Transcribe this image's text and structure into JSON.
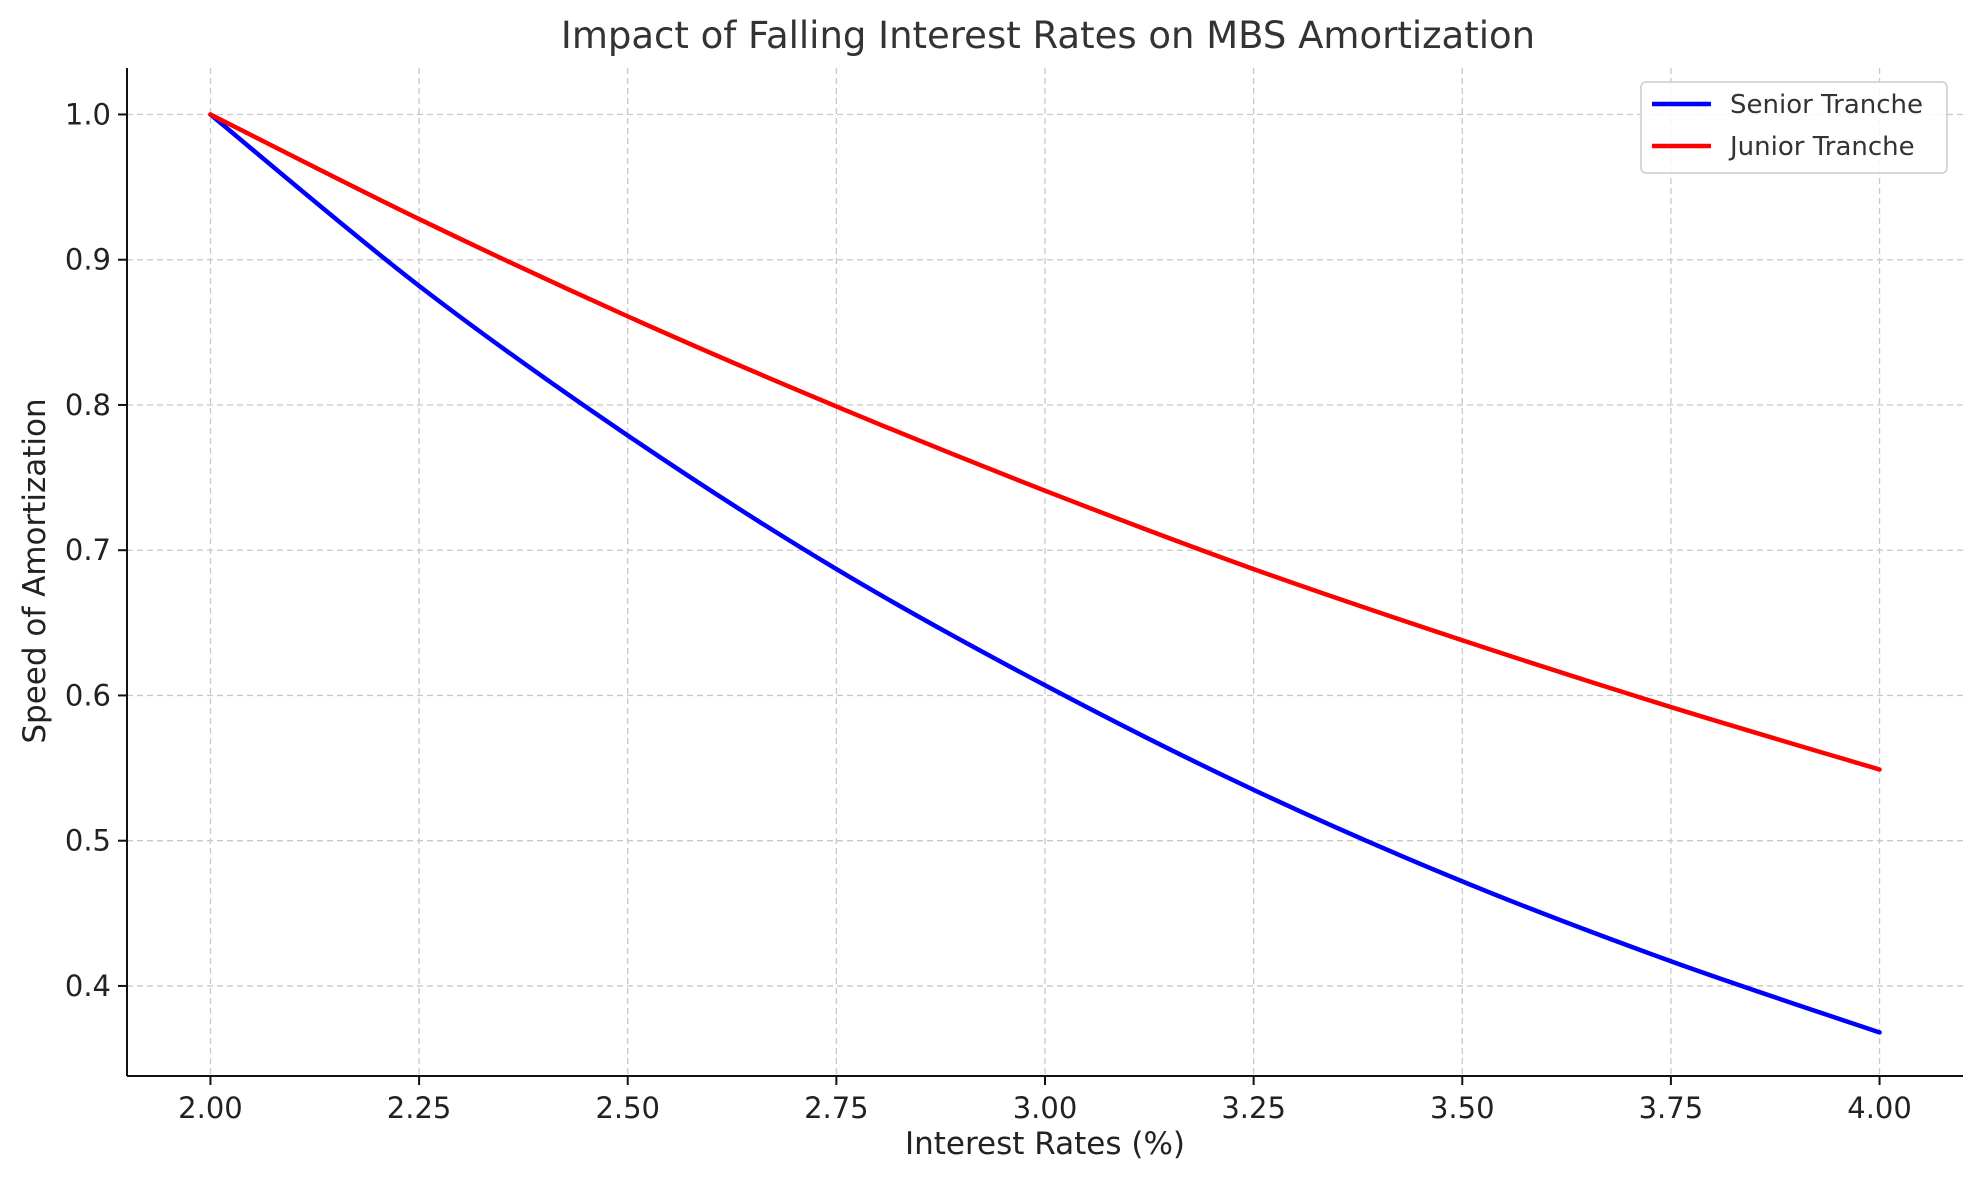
{
  "chart_data": {
    "type": "line",
    "title": "Impact of Falling Interest Rates on MBS Amortization",
    "xlabel": "Interest Rates (%)",
    "ylabel": "Speed of Amortization",
    "xlim": [
      1.9,
      4.1
    ],
    "ylim": [
      0.338,
      1.032
    ],
    "xticks": [
      2.0,
      2.25,
      2.5,
      2.75,
      3.0,
      3.25,
      3.5,
      3.75,
      4.0
    ],
    "xtick_labels": [
      "2.00",
      "2.25",
      "2.50",
      "2.75",
      "3.00",
      "3.25",
      "3.50",
      "3.75",
      "4.00"
    ],
    "yticks": [
      0.4,
      0.5,
      0.6,
      0.7,
      0.8,
      0.9,
      1.0
    ],
    "ytick_labels": [
      "0.4",
      "0.5",
      "0.6",
      "0.7",
      "0.8",
      "0.9",
      "1.0"
    ],
    "grid": true,
    "legend_position": "top-right",
    "x": [
      2.0,
      2.25,
      2.5,
      2.75,
      3.0,
      3.25,
      3.5,
      3.75,
      4.0
    ],
    "series": [
      {
        "name": "Senior Tranche",
        "color": "#0000ff",
        "values": [
          1.0,
          0.882,
          0.779,
          0.687,
          0.607,
          0.535,
          0.472,
          0.417,
          0.368
        ]
      },
      {
        "name": "Junior Tranche",
        "color": "#ff0000",
        "values": [
          1.0,
          0.928,
          0.861,
          0.799,
          0.741,
          0.687,
          0.638,
          0.592,
          0.549
        ]
      }
    ]
  }
}
